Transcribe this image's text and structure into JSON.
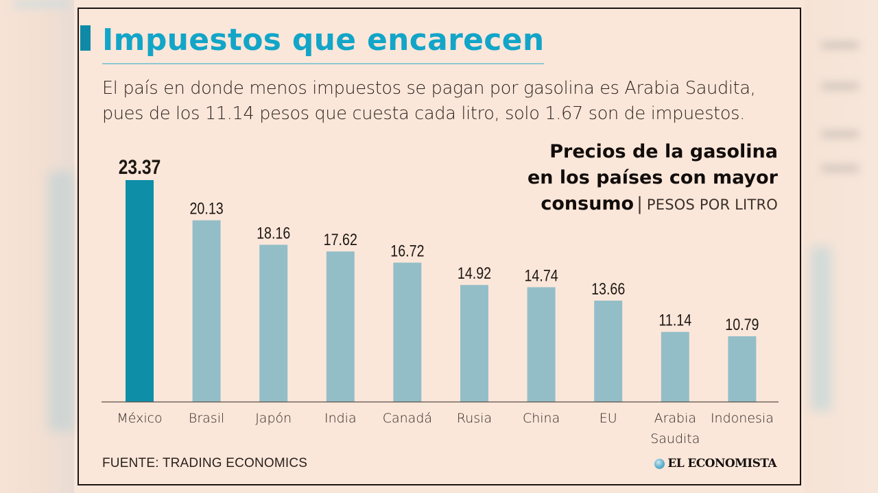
{
  "title": "Impuestos que encarecen",
  "subtitle_lines": [
    "El país en donde menos impuestos se pagan por gasolina es Arabia Saudita,",
    "pues de los 11.14 pesos que cuesta cada litro, solo 1.67 son de impuestos."
  ],
  "chart_heading": {
    "line1": "Precios de la gasolina",
    "line2": "en los países con mayor",
    "line3": "consumo",
    "separator": "|",
    "unit": "PESOS POR LITRO"
  },
  "source": "FUENTE: TRADING ECONOMICS",
  "brand": "EL ECONOMISTA",
  "colors": {
    "highlight_bar": "#0f8ea8",
    "bar": "#93bec8",
    "title": "#12a5c8",
    "background": "#fbe7da",
    "axis": "#5a4d45"
  },
  "chart_data": {
    "type": "bar",
    "title": "Precios de la gasolina en los países con mayor consumo",
    "ylabel": "Pesos por litro",
    "xlabel": "",
    "categories": [
      "México",
      "Brasil",
      "Japón",
      "India",
      "Canadá",
      "Rusia",
      "China",
      "EU",
      "Arabia Saudita",
      "Indonesia"
    ],
    "category_lines": [
      [
        "México"
      ],
      [
        "Brasil"
      ],
      [
        "Japón"
      ],
      [
        "India"
      ],
      [
        "Canadá"
      ],
      [
        "Rusia"
      ],
      [
        "China"
      ],
      [
        "EU"
      ],
      [
        "Arabia",
        "Saudita"
      ],
      [
        "Indonesia"
      ]
    ],
    "values": [
      23.37,
      20.13,
      18.16,
      17.62,
      16.72,
      14.92,
      14.74,
      13.66,
      11.14,
      10.79
    ],
    "value_labels": [
      "23.37",
      "20.13",
      "18.16",
      "17.62",
      "16.72",
      "14.92",
      "14.74",
      "13.66",
      "11.14",
      "10.79"
    ],
    "highlight_index": 0,
    "ylim": [
      5.5,
      23.37
    ],
    "grid": false,
    "y_axis_visible": false
  }
}
